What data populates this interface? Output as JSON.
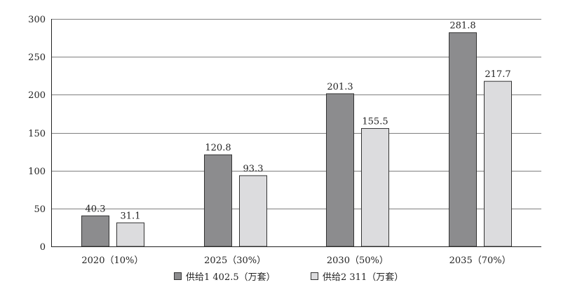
{
  "chart_data": {
    "type": "bar",
    "title": "",
    "xlabel": "",
    "ylabel": "",
    "ylim": [
      0,
      300
    ],
    "yticks": [
      0,
      50,
      100,
      150,
      200,
      250,
      300
    ],
    "grid": true,
    "legend_position": "bottom",
    "categories": [
      "2020（10%）",
      "2025（30%）",
      "2030（50%）",
      "2035（70%）"
    ],
    "series": [
      {
        "name": "供给1 402.5（万套）",
        "color": "#8c8c8e",
        "values": [
          40.3,
          120.8,
          201.3,
          281.8
        ],
        "labels": [
          "40.3",
          "120.8",
          "201.3",
          "281.8"
        ]
      },
      {
        "name": "供给2 311（万套）",
        "color": "#dcdcde",
        "values": [
          31.1,
          93.3,
          155.5,
          217.7
        ],
        "labels": [
          "31.1",
          "93.3",
          "155.5",
          "217.7"
        ]
      }
    ]
  }
}
